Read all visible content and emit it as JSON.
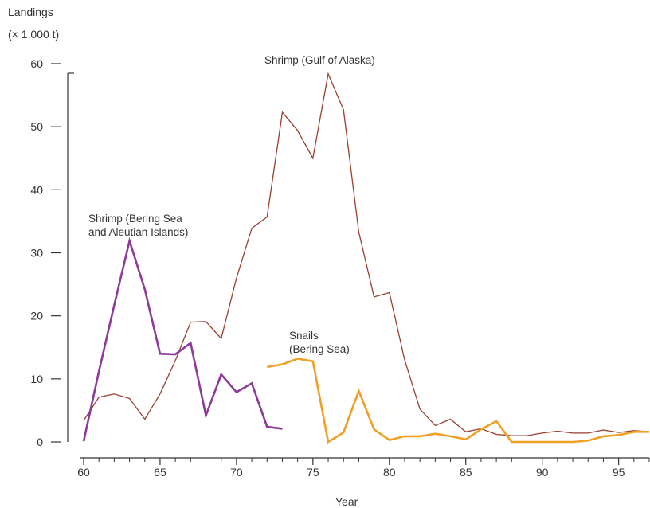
{
  "chart_data": {
    "type": "line",
    "ylabel_line1": "Landings",
    "ylabel_line2": "(× 1,000 t)",
    "xlabel": "Year",
    "xlim": [
      60,
      97
    ],
    "ylim": [
      0,
      60
    ],
    "xticks": [
      60,
      65,
      70,
      75,
      80,
      85,
      90,
      95
    ],
    "yticks": [
      0,
      10,
      20,
      30,
      40,
      50,
      60
    ],
    "grid": false,
    "series": [
      {
        "name_lines": [
          "Shrimp (Gulf of Alaska)"
        ],
        "color": "#9a3f2e",
        "width": 1.3,
        "x": [
          60,
          61,
          62,
          63,
          64,
          65,
          66,
          67,
          68,
          69,
          70,
          71,
          72,
          73,
          74,
          75,
          76,
          77,
          78,
          79,
          80,
          81,
          82,
          83,
          84,
          85,
          86,
          87,
          88,
          89,
          90,
          91,
          92,
          93,
          94,
          95,
          96,
          97
        ],
        "y": [
          3.4,
          7.1,
          7.6,
          6.9,
          3.6,
          7.6,
          12.9,
          19,
          19.1,
          16.4,
          26,
          33.9,
          35.7,
          52.3,
          49.4,
          45,
          58.4,
          52.7,
          33.3,
          23,
          23.7,
          13,
          5.2,
          2.6,
          3.6,
          1.6,
          2.1,
          1.2,
          1,
          1,
          1.4,
          1.7,
          1.4,
          1.4,
          1.9,
          1.5,
          1.8,
          1.6
        ]
      },
      {
        "name_lines": [
          "Shrimp (Bering Sea",
          "and Aleutian Islands)"
        ],
        "color": "#8e3a99",
        "width": 2.6,
        "x": [
          60,
          61,
          62,
          63,
          64,
          65,
          66,
          67,
          68,
          69,
          70,
          71,
          72,
          73
        ],
        "y": [
          0.1,
          11.2,
          21.7,
          31.9,
          24.2,
          14,
          13.9,
          15.7,
          4.2,
          10.7,
          7.9,
          9.3,
          2.4,
          2.1
        ]
      },
      {
        "name_lines": [
          "Snails",
          "(Bering Sea)"
        ],
        "color": "#f0a024",
        "width": 2.6,
        "x": [
          72,
          73,
          74,
          75,
          76,
          77,
          78,
          79,
          80,
          81,
          82,
          83,
          84,
          85,
          86,
          87,
          88,
          89,
          90,
          91,
          92,
          93,
          94,
          95,
          96,
          97
        ],
        "y": [
          11.9,
          12.3,
          13.2,
          12.8,
          0,
          1.5,
          8.1,
          2,
          0.3,
          0.9,
          0.9,
          1.3,
          0.9,
          0.4,
          2,
          3.3,
          0,
          0,
          0,
          0,
          0,
          0.2,
          0.9,
          1.1,
          1.6,
          1.6
        ]
      }
    ]
  }
}
